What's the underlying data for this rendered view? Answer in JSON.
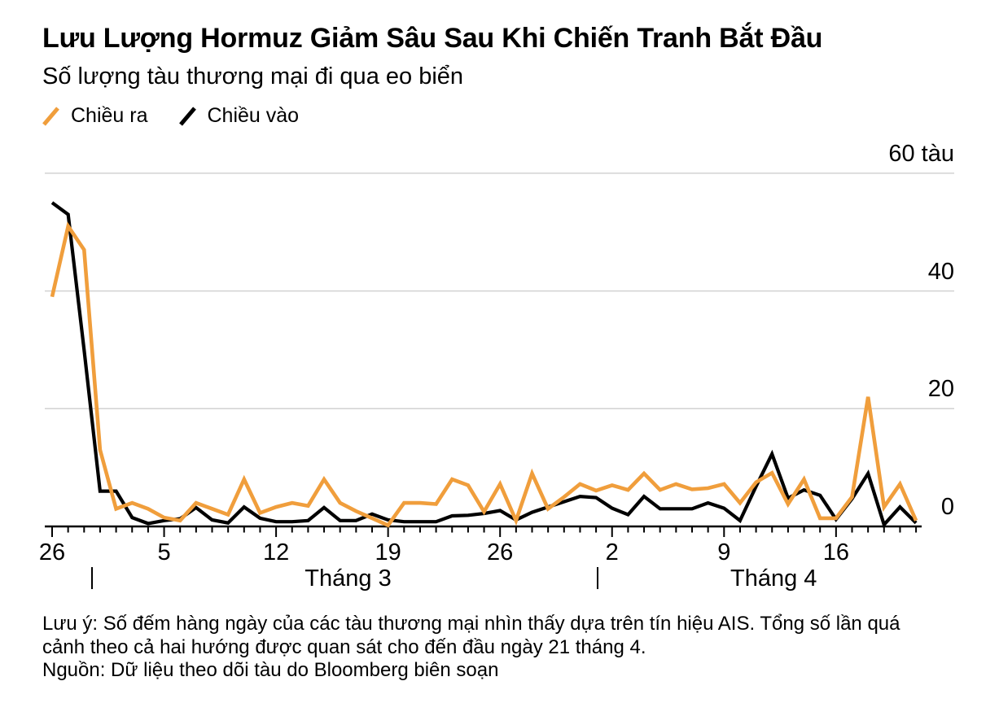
{
  "header": {
    "title": "Lưu Lượng Hormuz Giảm Sâu Sau Khi Chiến Tranh Bắt Đầu",
    "subtitle": "Số lượng tàu thương mại đi qua eo biển"
  },
  "legend": {
    "items": [
      {
        "label": "Chiều ra",
        "color": "#F09E3C"
      },
      {
        "label": "Chiều vào",
        "color": "#000000"
      }
    ]
  },
  "footnote": {
    "note": "Lưu ý: Số đếm hàng ngày của các tàu thương mại nhìn thấy dựa trên tín hiệu AIS. Tổng số lần quá cảnh theo cả hai hướng được quan sát cho đến đầu ngày 21 tháng 4.",
    "source": "Nguồn: Dữ liệu theo dõi tàu do Bloomberg biên soạn"
  },
  "colors": {
    "accent_orange": "#F09E3C",
    "line_black": "#000000",
    "gridline": "#d2d2d2",
    "axis": "#000000"
  },
  "chart_data": {
    "type": "line",
    "title": "Lưu Lượng Hormuz Giảm Sâu Sau Khi Chiến Tranh Bắt Đầu",
    "subtitle": "Số lượng tàu thương mại đi qua eo biển",
    "ylim": [
      0,
      62
    ],
    "grid": "horizontal",
    "legend_position": "top-left",
    "y_ticks": [
      {
        "value": 60,
        "label": "60 tàu"
      },
      {
        "value": 40,
        "label": "40"
      },
      {
        "value": 20,
        "label": "20"
      },
      {
        "value": 0,
        "label": "0"
      }
    ],
    "x_dates": [
      "26/2",
      "27/2",
      "28/2",
      "1/3",
      "2/3",
      "3/3",
      "4/3",
      "5/3",
      "6/3",
      "7/3",
      "8/3",
      "9/3",
      "10/3",
      "11/3",
      "12/3",
      "13/3",
      "14/3",
      "15/3",
      "16/3",
      "17/3",
      "18/3",
      "19/3",
      "20/3",
      "21/3",
      "22/3",
      "23/3",
      "24/3",
      "25/3",
      "26/3",
      "27/3",
      "28/3",
      "29/3",
      "30/3",
      "31/3",
      "1/4",
      "2/4",
      "3/4",
      "4/4",
      "5/4",
      "6/4",
      "7/4",
      "8/4",
      "9/4",
      "10/4",
      "11/4",
      "12/4",
      "13/4",
      "14/4",
      "15/4",
      "16/4",
      "17/4",
      "18/4",
      "19/4",
      "20/4",
      "21/4"
    ],
    "x_tick_labels": [
      {
        "day": 0,
        "label": "26"
      },
      {
        "day": 7,
        "label": "5"
      },
      {
        "day": 14,
        "label": "12"
      },
      {
        "day": 21,
        "label": "19"
      },
      {
        "day": 28,
        "label": "26"
      },
      {
        "day": 35,
        "label": "2"
      },
      {
        "day": 42,
        "label": "9"
      },
      {
        "day": 49,
        "label": "16"
      }
    ],
    "month_separators": [
      2.5,
      34.1
    ],
    "month_labels": [
      {
        "label": "Tháng 3",
        "day": 18.5
      },
      {
        "label": "Tháng 4",
        "day": 45.1
      }
    ],
    "series": [
      {
        "id": "outbound",
        "name": "Chiều ra",
        "color": "#F09E3C",
        "values": [
          39,
          51,
          47,
          13,
          3,
          4,
          3,
          1.5,
          1,
          4,
          3,
          2,
          8,
          2.3,
          3.3,
          4,
          3.5,
          8,
          4,
          2.6,
          1.4,
          0.2,
          4,
          4,
          3.8,
          8,
          7,
          2.5,
          7.2,
          1,
          9,
          3,
          5,
          7.2,
          6.1,
          7,
          6.2,
          9,
          6.2,
          7.2,
          6.3,
          6.5,
          7.2,
          4,
          7.5,
          9.1,
          3.8,
          8,
          1.4,
          1.4,
          5,
          22,
          3.3,
          7.2,
          1
        ]
      },
      {
        "id": "inbound",
        "name": "Chiều vào",
        "color": "#000000",
        "values": [
          55,
          53,
          30,
          6,
          6,
          1.5,
          0.5,
          1,
          1.3,
          3.2,
          1.1,
          0.6,
          3.3,
          1.4,
          0.8,
          0.8,
          1,
          3.2,
          1,
          1,
          2.1,
          1.1,
          0.8,
          0.8,
          0.8,
          1.8,
          1.9,
          2.2,
          2.7,
          1.1,
          2.4,
          3.3,
          4.2,
          5.1,
          4.9,
          3.1,
          2,
          5.1,
          3,
          3,
          3,
          4,
          3.1,
          1,
          6.8,
          12.3,
          4.8,
          6.2,
          5.3,
          1.2,
          4.7,
          9,
          0.3,
          3.3,
          0.6
        ]
      }
    ]
  }
}
